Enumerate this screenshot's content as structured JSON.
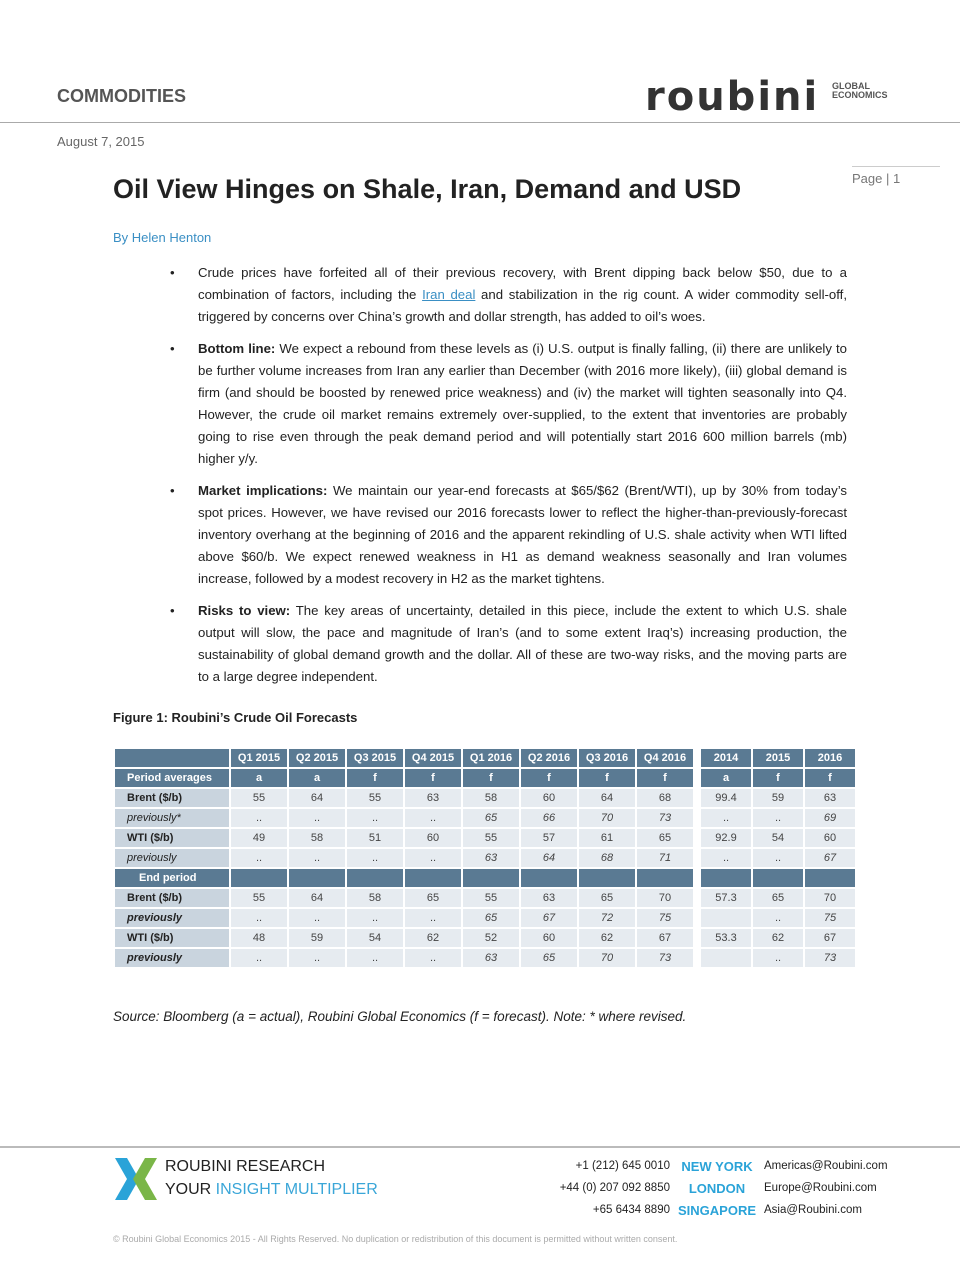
{
  "header": {
    "section": "COMMODITIES",
    "logo": "roubini",
    "logo_sub": "GLOBAL ECONOMICS",
    "date": "August 7, 2015",
    "page": "Page | 1"
  },
  "title": "Oil View Hinges on Shale, Iran, Demand and USD",
  "author": "By Helen Henton",
  "bullets": [
    {
      "lead": "",
      "pre": "Crude prices have forfeited all of their previous recovery, with Brent dipping back below $50, due to a combination of factors, including the ",
      "link": "Iran deal",
      "post": " and stabilization in the rig count. A wider commodity sell-off, triggered by concerns over China’s growth and dollar strength, has added to oil’s woes."
    },
    {
      "lead": "Bottom line:",
      "pre": " We expect a rebound from these levels as (i) U.S. output is finally falling, (ii) there are unlikely to be further volume increases from Iran any earlier than December (with 2016 more likely), (iii) global demand is firm (and should be boosted by renewed price weakness) and (iv) the market will tighten seasonally into Q4. However, the crude oil market remains extremely over-supplied, to the extent that inventories are probably going to rise even through the peak demand period and will potentially start 2016 600 million barrels (mb) higher y/y.",
      "link": "",
      "post": ""
    },
    {
      "lead": "Market implications:",
      "pre": " We maintain our year-end forecasts at $65/$62 (Brent/WTI), up by 30% from today’s spot prices. However, we have revised our 2016 forecasts lower to reflect the higher-than-previously-forecast inventory overhang at the beginning of 2016 and the apparent rekindling of U.S. shale activity when WTI lifted above $60/b. We expect renewed weakness in H1 as demand weakness seasonally and Iran volumes increase, followed by a modest recovery in H2 as the market tightens.",
      "link": "",
      "post": ""
    },
    {
      "lead": "Risks to view:",
      "pre": " The key areas of uncertainty, detailed in this piece, include the extent to which U.S. shale output will slow, the pace and magnitude of Iran’s (and to some extent Iraq’s) increasing production, the sustainability of global demand growth and the dollar. All of these are two-way risks, and the moving parts are to a large degree independent.",
      "link": "",
      "post": ""
    }
  ],
  "figure": {
    "caption": "Figure 1: Roubini’s Crude Oil Forecasts",
    "columns": [
      "Q1 2015",
      "Q2 2015",
      "Q3 2015",
      "Q4 2015",
      "Q1 2016",
      "Q2 2016",
      "Q3 2016",
      "Q4 2016",
      "2014",
      "2015",
      "2016"
    ],
    "rows": [
      {
        "label": "Period averages",
        "type": "h",
        "cells": [
          "a",
          "a",
          "f",
          "f",
          "f",
          "f",
          "f",
          "f",
          "a",
          "f",
          "f"
        ]
      },
      {
        "label": "Brent ($/b)",
        "type": "b",
        "cells": [
          "55",
          "64",
          "55",
          "63",
          "58",
          "60",
          "64",
          "68",
          "99.4",
          "59",
          "63"
        ]
      },
      {
        "label": "previously*",
        "type": "pi",
        "cells": [
          "..",
          "..",
          "..",
          "..",
          "65",
          "66",
          "70",
          "73",
          "..",
          "..",
          "69"
        ]
      },
      {
        "label": "WTI ($/b)",
        "type": "b",
        "cells": [
          "49",
          "58",
          "51",
          "60",
          "55",
          "57",
          "61",
          "65",
          "92.9",
          "54",
          "60"
        ]
      },
      {
        "label": "previously",
        "type": "pi",
        "cells": [
          "..",
          "..",
          "..",
          "..",
          "63",
          "64",
          "68",
          "71",
          "..",
          "..",
          "67"
        ]
      },
      {
        "label": "End period",
        "type": "h",
        "cells": [
          "",
          "",
          "",
          "",
          "",
          "",
          "",
          "",
          "",
          "",
          ""
        ]
      },
      {
        "label": "Brent ($/b)",
        "type": "b",
        "cells": [
          "55",
          "64",
          "58",
          "65",
          "55",
          "63",
          "65",
          "70",
          "57.3",
          "65",
          "70"
        ]
      },
      {
        "label": "previously",
        "type": "p",
        "cells": [
          "..",
          "..",
          "..",
          "..",
          "65",
          "67",
          "72",
          "75",
          "",
          "..",
          "75"
        ]
      },
      {
        "label": "WTI ($/b)",
        "type": "b",
        "cells": [
          "48",
          "59",
          "54",
          "62",
          "52",
          "60",
          "62",
          "67",
          "53.3",
          "62",
          "67"
        ]
      },
      {
        "label": "previously",
        "type": "p",
        "cells": [
          "..",
          "..",
          "..",
          "..",
          "63",
          "65",
          "70",
          "73",
          "",
          "..",
          "73"
        ]
      }
    ],
    "source": "Source: Bloomberg (a = actual), Roubini Global Economics (f = forecast). Note: * where revised."
  },
  "footer": {
    "line1": "ROUBINI RESEARCH",
    "line2a": "YOUR ",
    "line2b": "INSIGHT MULTIPLIER",
    "offices": [
      {
        "phone": "+1 (212) 645 0010",
        "city": "NEW YORK",
        "email": "Americas@Roubini.com"
      },
      {
        "phone": "+44 (0) 207 092 8850",
        "city": "LONDON",
        "email": "Europe@Roubini.com"
      },
      {
        "phone": "+65 6434 8890",
        "city": "SINGAPORE",
        "email": "Asia@Roubini.com"
      }
    ],
    "copyright": "© Roubini Global Economics 2015 - All Rights Reserved. No duplication or redistribution of this document is permitted without written consent.",
    "colors": {
      "accent": "#2aa3d8",
      "green": "#7ab648"
    }
  }
}
